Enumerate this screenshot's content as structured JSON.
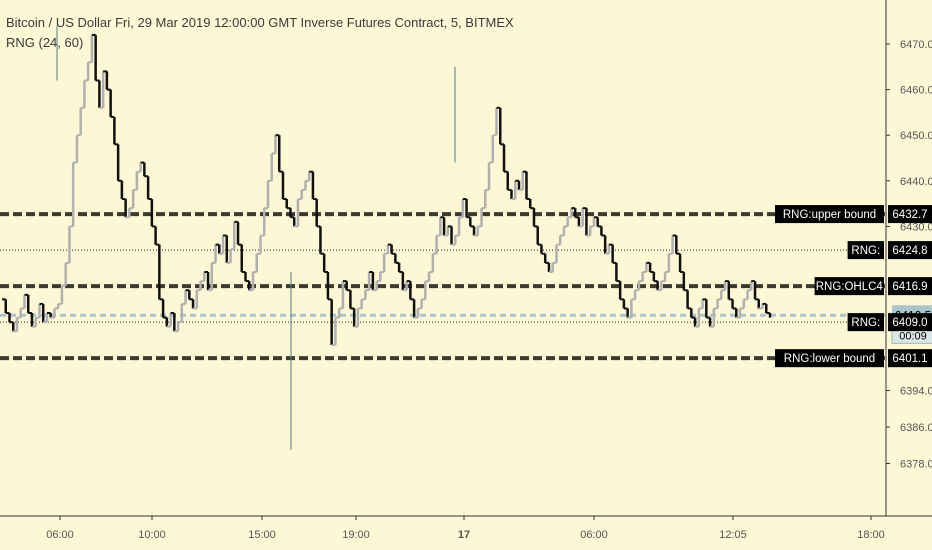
{
  "header": {
    "title": "Bitcoin / US Dollar Fri, 29 Mar 2019 12:00:00 GMT Inverse Futures Contract, 5, BITMEX",
    "indicator": "RNG (24, 60)"
  },
  "colors": {
    "background": "#fdf7d5",
    "candle_up": "#b0b0b0",
    "candle_down": "#111111",
    "guide": "#3c3a30",
    "current_price": "#a8c6cc",
    "tag_bg": "#000000",
    "tag_text": "#ffffff",
    "price_tag_bg": "#a8c6cc"
  },
  "chart_data": {
    "type": "line",
    "chart_style": "step-line candles (5-minute bars)",
    "title": "Bitcoin / US Dollar Fri, 29 Mar 2019 12:00:00 GMT Inverse Futures Contract, 5, BITMEX",
    "ylim": [
      6376,
      6474
    ],
    "y_ticks": [
      "6378.0",
      "6386.0",
      "6394.0",
      "6401.1",
      "6409.0",
      "6410.5",
      "6416.9",
      "6424.8",
      "6430.0",
      "6432.7",
      "6440.0",
      "6450.0",
      "6460.0",
      "6470.0"
    ],
    "x_ticks": [
      "06:00",
      "10:00",
      "15:00",
      "19:00",
      "17",
      "06:00",
      "12:05",
      "18:00"
    ],
    "grid": false,
    "series": [
      {
        "name": "BTCUSD 5m",
        "x_start": "16 04:00",
        "x_step_minutes": 5,
        "values": [
          6414,
          6411,
          6409,
          6407,
          6410,
          6412,
          6415,
          6411,
          6408,
          6410,
          6413,
          6409,
          6411,
          6410,
          6412,
          6413,
          6417,
          6422,
          6430,
          6444,
          6450,
          6456,
          6462,
          6466,
          6472,
          6462,
          6456,
          6464,
          6460,
          6454,
          6448,
          6440,
          6436,
          6432,
          6434,
          6438,
          6442,
          6444,
          6441,
          6436,
          6430,
          6426,
          6414,
          6410,
          6408,
          6411,
          6407,
          6409,
          6413,
          6416,
          6414,
          6412,
          6416,
          6418,
          6420,
          6416,
          6422,
          6426,
          6424,
          6428,
          6422,
          6425,
          6431,
          6426,
          6420,
          6418,
          6416,
          6420,
          6424,
          6428,
          6434,
          6440,
          6446,
          6450,
          6442,
          6436,
          6434,
          6432,
          6430,
          6436,
          6438,
          6440,
          6442,
          6436,
          6430,
          6424,
          6420,
          6414,
          6404,
          6410,
          6412,
          6418,
          6416,
          6412,
          6408,
          6412,
          6414,
          6416,
          6420,
          6416,
          6418,
          6420,
          6424,
          6426,
          6424,
          6422,
          6420,
          6416,
          6418,
          6414,
          6410,
          6412,
          6414,
          6418,
          6420,
          6424,
          6428,
          6432,
          6428,
          6430,
          6426,
          6428,
          6432,
          6436,
          6432,
          6430,
          6428,
          6430,
          6434,
          6438,
          6444,
          6450,
          6456,
          6448,
          6442,
          6438,
          6436,
          6440,
          6438,
          6442,
          6436,
          6434,
          6430,
          6426,
          6424,
          6422,
          6420,
          6422,
          6426,
          6428,
          6430,
          6432,
          6434,
          6432,
          6430,
          6434,
          6428,
          6430,
          6432,
          6430,
          6428,
          6424,
          6426,
          6422,
          6418,
          6414,
          6412,
          6410,
          6414,
          6416,
          6418,
          6420,
          6422,
          6420,
          6418,
          6416,
          6418,
          6420,
          6424,
          6428,
          6424,
          6420,
          6416,
          6412,
          6410,
          6408,
          6412,
          6414,
          6410,
          6408,
          6412,
          6414,
          6416,
          6418,
          6414,
          6412,
          6410,
          6412,
          6414,
          6416,
          6418,
          6414,
          6412,
          6413,
          6411,
          6410
        ]
      }
    ],
    "levels": [
      {
        "name": "RNG:upper bound",
        "value": 6432.7,
        "style": "dashed-thick"
      },
      {
        "name": "RNG:",
        "value": 6424.8,
        "style": "dotted"
      },
      {
        "name": "RNG:OHLC4",
        "value": 6416.9,
        "style": "dashed-thick"
      },
      {
        "name": "",
        "value": 6410.5,
        "style": "current-price",
        "countdown": "00:09"
      },
      {
        "name": "RNG:",
        "value": 6409.0,
        "style": "dotted"
      },
      {
        "name": "RNG:lower bound",
        "value": 6401.1,
        "style": "dashed-thick"
      }
    ]
  }
}
